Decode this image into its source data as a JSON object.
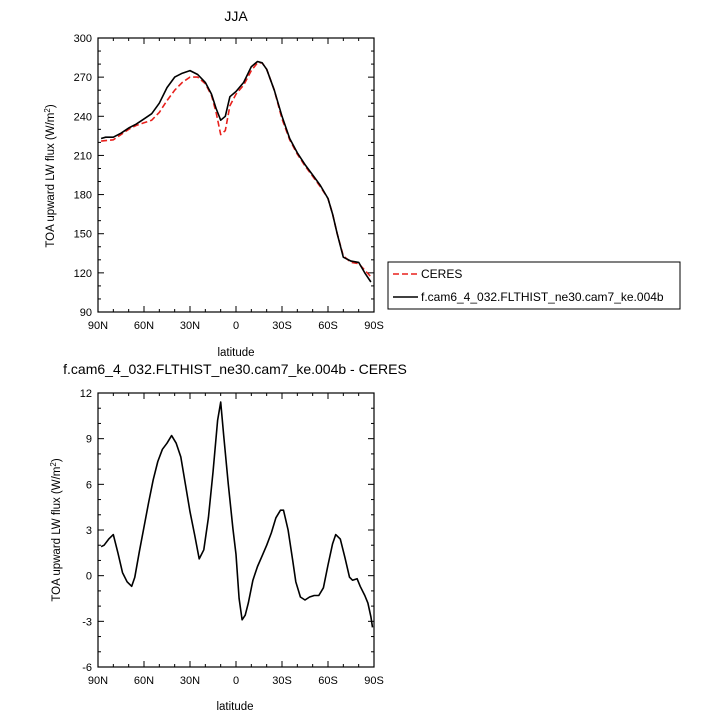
{
  "chart_data": [
    {
      "type": "line",
      "title": "JJA",
      "xlabel": "latitude",
      "ylabel": "TOA upward LW flux (W/m²)",
      "ylabel_base": "TOA upward LW flux (W/m",
      "ylabel_sup": "2",
      "ylabel_close": ")",
      "xlim": [
        90,
        -90
      ],
      "ylim": [
        90,
        300
      ],
      "x_ticks": [
        90,
        60,
        30,
        0,
        -30,
        -60,
        -90
      ],
      "x_tick_labels": [
        "90N",
        "60N",
        "30N",
        "0",
        "30S",
        "60S",
        "90S"
      ],
      "y_ticks": [
        90,
        120,
        150,
        180,
        210,
        240,
        270,
        300
      ],
      "y_tick_labels": [
        "90",
        "120",
        "150",
        "180",
        "210",
        "240",
        "270",
        "300"
      ],
      "grid": false,
      "legend_position": "right",
      "series": [
        {
          "name": "CERES",
          "color": "#e8201c",
          "dash": "dashed",
          "x": [
            88,
            80,
            75,
            70,
            65,
            60,
            55,
            50,
            45,
            40,
            35,
            30,
            25,
            20,
            16,
            13,
            10,
            7,
            4,
            0,
            -5,
            -10,
            -14,
            -17,
            -20,
            -25,
            -30,
            -35,
            -40,
            -45,
            -50,
            -55,
            -60,
            -63,
            -66,
            -70,
            -75,
            -80,
            -84,
            -88
          ],
          "y": [
            221,
            222,
            226,
            230,
            233,
            235,
            237,
            243,
            252,
            260,
            266,
            270,
            270,
            265,
            256,
            243,
            226,
            229,
            248,
            257,
            264,
            275,
            281,
            281,
            276,
            260,
            238,
            222,
            211,
            202,
            194,
            186,
            177,
            165,
            150,
            133,
            128,
            127,
            122,
            117
          ]
        },
        {
          "name": "f.cam6_4_032.FLTHIST_ne30.cam7_ke.004b",
          "color": "#000000",
          "dash": "solid",
          "x": [
            88,
            85,
            80,
            75,
            70,
            65,
            60,
            55,
            50,
            45,
            40,
            35,
            30,
            25,
            20,
            16,
            13,
            10,
            7,
            4,
            0,
            -5,
            -10,
            -14,
            -17,
            -20,
            -25,
            -30,
            -35,
            -40,
            -45,
            -50,
            -55,
            -60,
            -63,
            -66,
            -70,
            -75,
            -80,
            -84,
            -88
          ],
          "y": [
            223,
            224,
            224,
            227,
            231,
            234,
            238,
            242,
            250,
            262,
            270,
            273,
            275,
            272,
            266,
            257,
            246,
            237,
            240,
            255,
            259,
            266,
            278,
            282,
            281,
            276,
            260,
            240,
            223,
            212,
            203,
            195,
            187,
            177,
            165,
            150,
            132,
            129,
            128,
            120,
            113
          ]
        }
      ]
    },
    {
      "type": "line",
      "title": "f.cam6_4_032.FLTHIST_ne30.cam7_ke.004b - CERES",
      "xlabel": "latitude",
      "ylabel": "TOA upward LW flux (W/m²)",
      "ylabel_base": "TOA upward LW flux (W/m",
      "ylabel_sup": "2",
      "ylabel_close": ")",
      "xlim": [
        90,
        -90
      ],
      "ylim": [
        -6,
        12
      ],
      "x_ticks": [
        90,
        60,
        30,
        0,
        -30,
        -60,
        -90
      ],
      "x_tick_labels": [
        "90N",
        "60N",
        "30N",
        "0",
        "30S",
        "60S",
        "90S"
      ],
      "y_ticks": [
        -6,
        -3,
        0,
        3,
        6,
        9,
        12
      ],
      "y_tick_labels": [
        "-6",
        "-3",
        "0",
        "3",
        "6",
        "9",
        "12"
      ],
      "grid": false,
      "series": [
        {
          "color": "#000000",
          "dash": "solid",
          "x": [
            88,
            86,
            83,
            80,
            77,
            74,
            71,
            68,
            66,
            63,
            60,
            57,
            54,
            51,
            48,
            45,
            42,
            39,
            36,
            33,
            30,
            27,
            24,
            21,
            18,
            15,
            12,
            10,
            8,
            5,
            2,
            0,
            -2,
            -4,
            -6,
            -8,
            -11,
            -14,
            -17,
            -20,
            -23,
            -26,
            -29,
            -31,
            -34,
            -37,
            -39,
            -42,
            -45,
            -48,
            -51,
            -54,
            -57,
            -60,
            -63,
            -65,
            -68,
            -71,
            -74,
            -76,
            -79,
            -81,
            -84,
            -86,
            -88,
            -89
          ],
          "y": [
            1.9,
            2.0,
            2.4,
            2.7,
            1.5,
            0.2,
            -0.4,
            -0.7,
            -0.1,
            1.6,
            3.2,
            4.8,
            6.3,
            7.5,
            8.3,
            8.7,
            9.2,
            8.7,
            7.8,
            6.0,
            4.2,
            2.7,
            1.1,
            1.7,
            3.8,
            6.8,
            10.2,
            11.4,
            9.2,
            6.0,
            3.1,
            1.4,
            -1.5,
            -2.9,
            -2.6,
            -1.8,
            -0.3,
            0.6,
            1.3,
            2.0,
            2.8,
            3.8,
            4.3,
            4.3,
            3.0,
            1.0,
            -0.4,
            -1.4,
            -1.6,
            -1.4,
            -1.3,
            -1.3,
            -0.8,
            0.7,
            2.1,
            2.7,
            2.4,
            1.2,
            -0.1,
            -0.3,
            -0.2,
            -0.7,
            -1.3,
            -1.8,
            -2.7,
            -3.4
          ]
        }
      ]
    }
  ]
}
